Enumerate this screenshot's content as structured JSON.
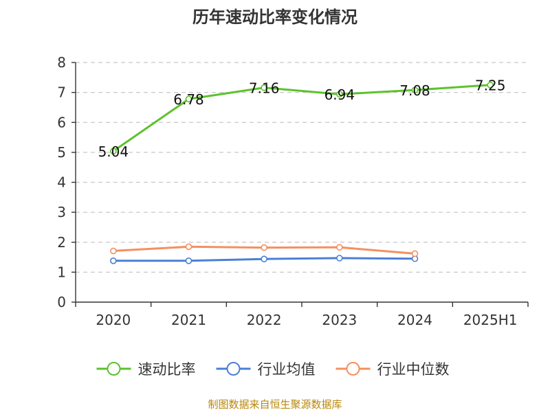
{
  "chart_data": {
    "type": "line",
    "title": "历年速动比率变化情况",
    "categories": [
      "2020",
      "2021",
      "2022",
      "2023",
      "2024",
      "2025H1"
    ],
    "ylim": [
      0,
      8
    ],
    "yticks": [
      0,
      1,
      2,
      3,
      4,
      5,
      6,
      7,
      8
    ],
    "grid": true,
    "legend_position": "bottom",
    "series": [
      {
        "name": "速动比率",
        "color": "#5cc22c",
        "values": [
          5.04,
          6.78,
          7.16,
          6.94,
          7.08,
          7.25
        ],
        "labels": [
          "5.04",
          "6.78",
          "7.16",
          "6.94",
          "7.08",
          "7.25"
        ],
        "show_labels": true
      },
      {
        "name": "行业均值",
        "color": "#4a7fd6",
        "values": [
          1.38,
          1.38,
          1.44,
          1.47,
          1.45,
          null
        ],
        "show_labels": false
      },
      {
        "name": "行业中位数",
        "color": "#f4905e",
        "values": [
          1.71,
          1.85,
          1.82,
          1.83,
          1.62,
          null
        ],
        "show_labels": false
      }
    ]
  },
  "source": "制图数据来自恒生聚源数据库"
}
